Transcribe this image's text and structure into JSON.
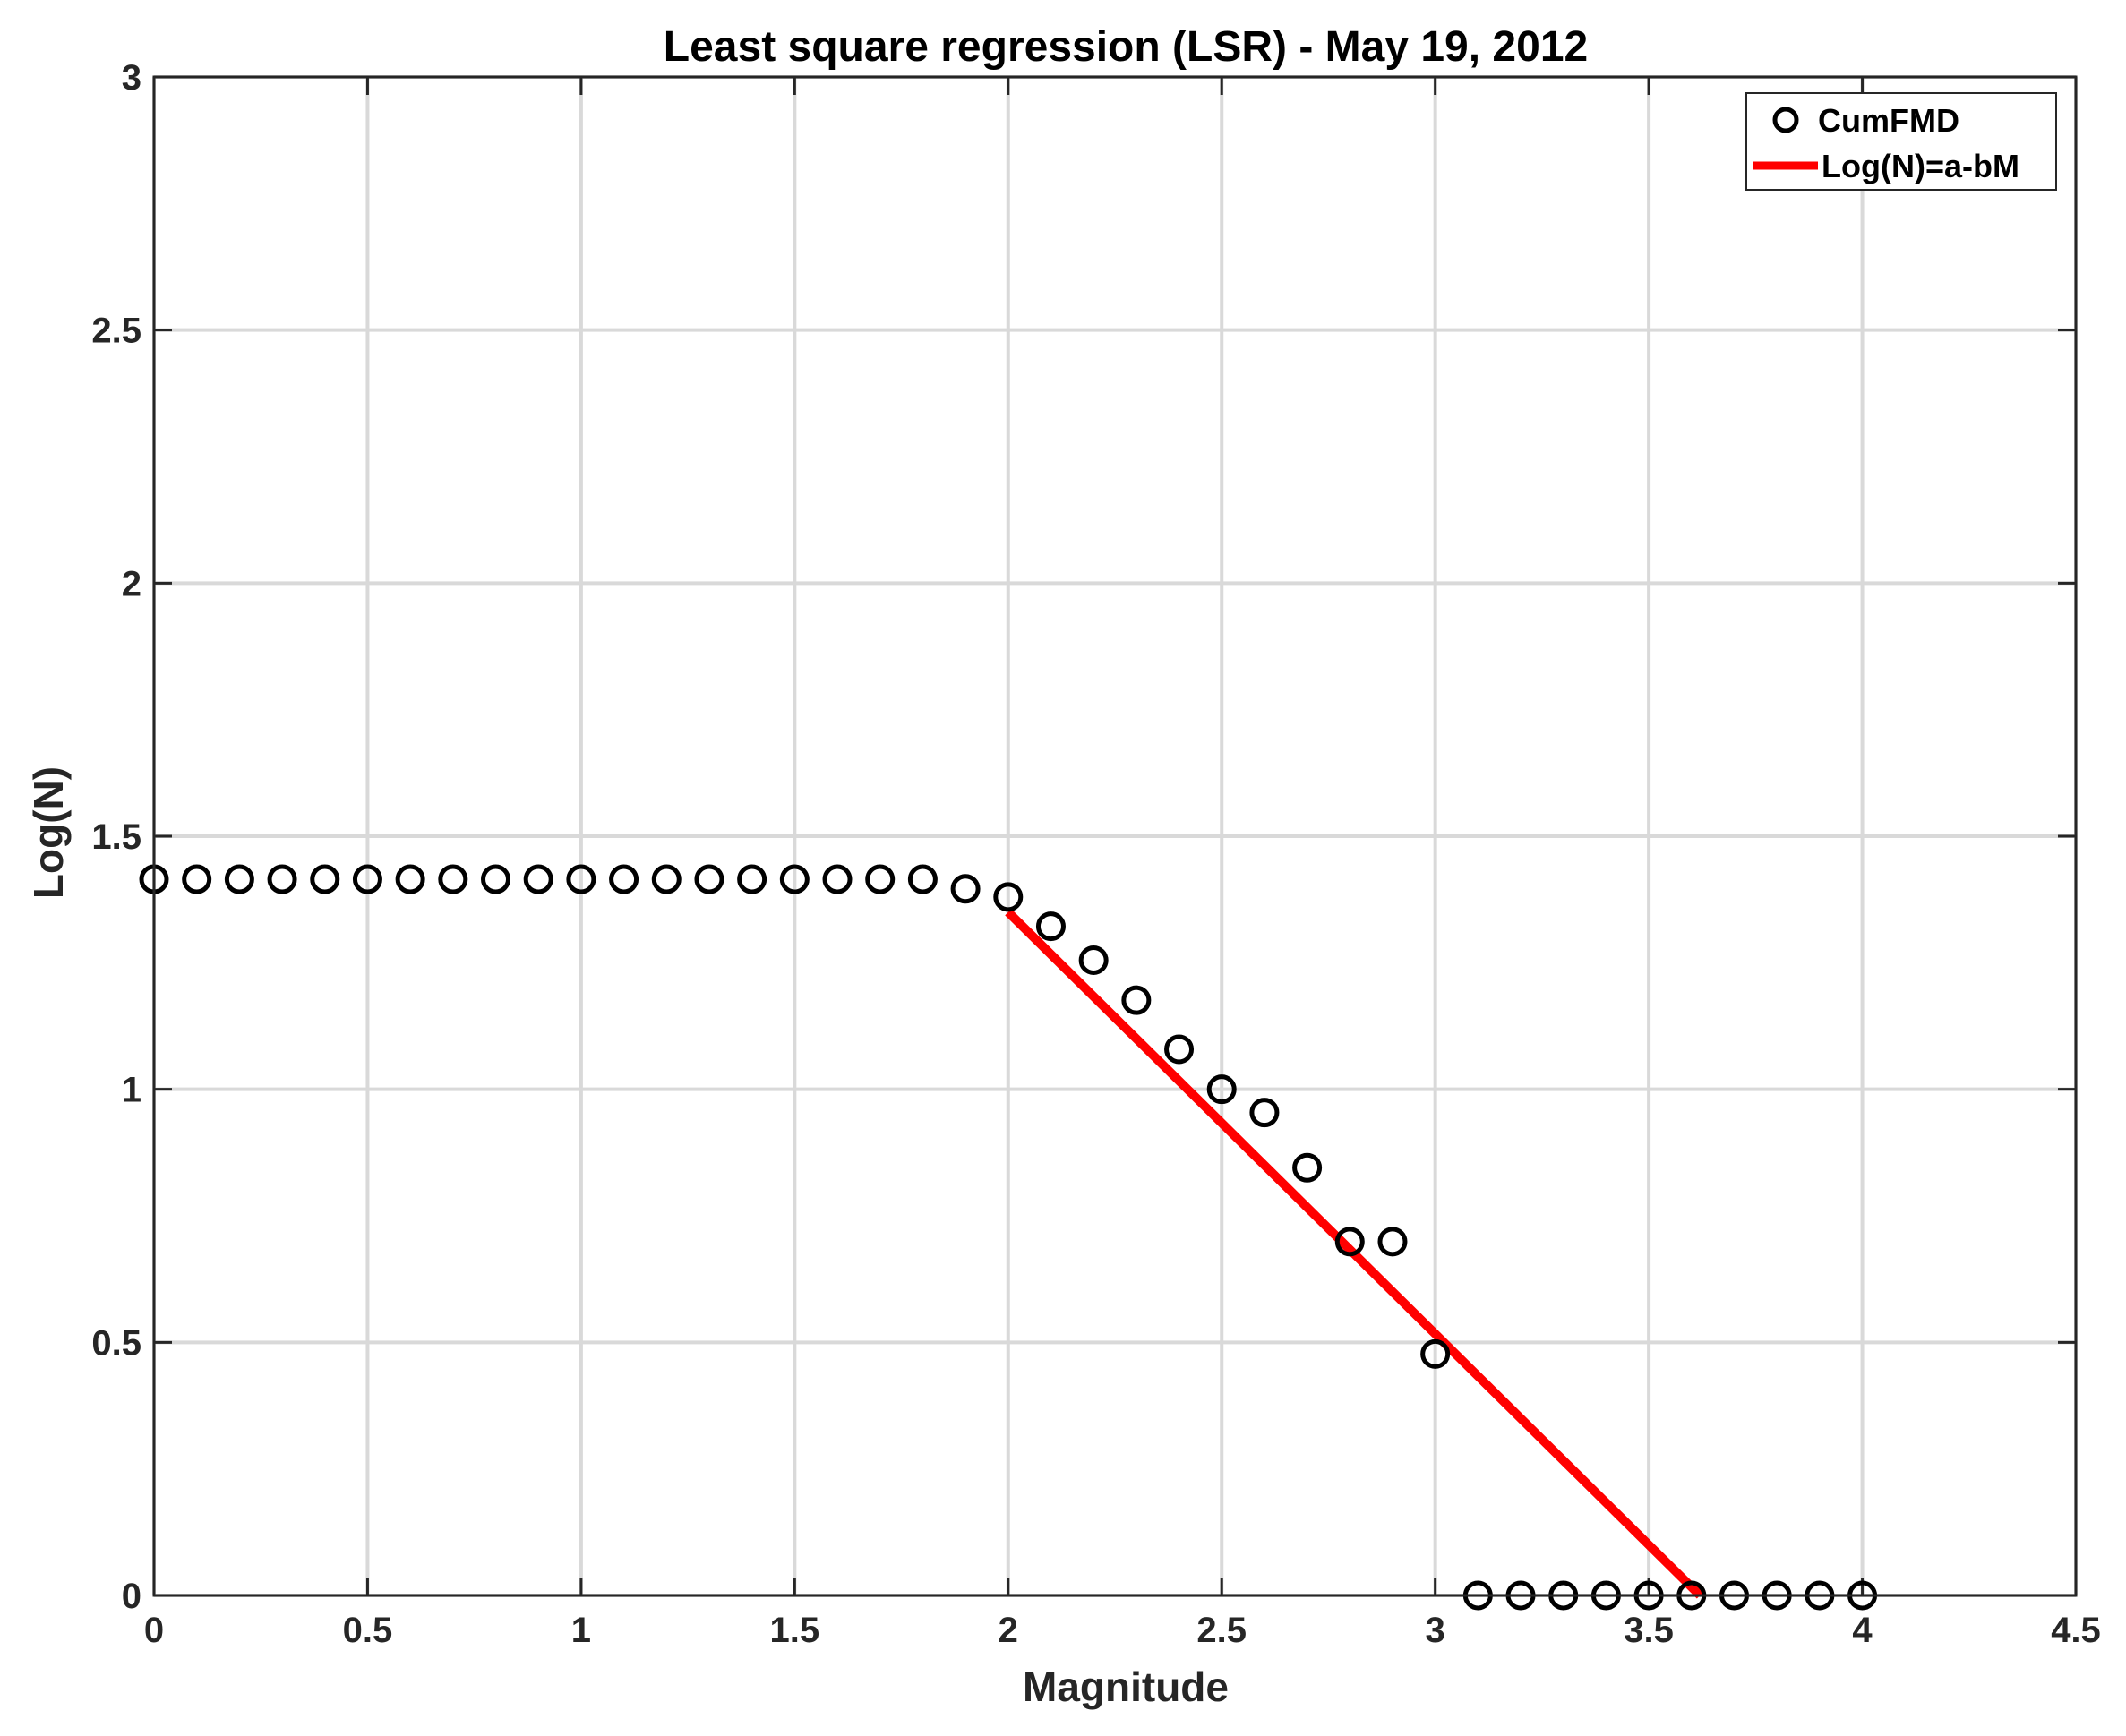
{
  "chart_data": {
    "type": "scatter",
    "title": "Least square regression (LSR) - May 19, 2012",
    "xlabel": "Magnitude",
    "ylabel": "Log(N)",
    "xlim": [
      0,
      4.5
    ],
    "ylim": [
      0,
      3
    ],
    "x_ticks": [
      0,
      0.5,
      1,
      1.5,
      2,
      2.5,
      3,
      3.5,
      4,
      4.5
    ],
    "x_tick_labels": [
      "0",
      "0.5",
      "1",
      "1.5",
      "2",
      "2.5",
      "3",
      "3.5",
      "4",
      "4.5"
    ],
    "y_ticks": [
      0,
      0.5,
      1,
      1.5,
      2,
      2.5,
      3
    ],
    "y_tick_labels": [
      "0",
      "0.5",
      "1",
      "1.5",
      "2",
      "2.5",
      "3"
    ],
    "grid": true,
    "legend_position": "top-right",
    "series": [
      {
        "name": "CumFMD",
        "marker": "circle",
        "color": "#000000",
        "x": [
          0,
          0.1,
          0.2,
          0.3,
          0.4,
          0.5,
          0.6,
          0.7,
          0.8,
          0.9,
          1.0,
          1.1,
          1.2,
          1.3,
          1.4,
          1.5,
          1.6,
          1.7,
          1.8,
          1.9,
          2.0,
          2.1,
          2.2,
          2.3,
          2.4,
          2.5,
          2.6,
          2.7,
          2.8,
          2.9,
          3.0,
          3.1,
          3.2,
          3.3,
          3.4,
          3.5,
          3.6,
          3.7,
          3.8,
          3.9,
          4.0
        ],
        "y": [
          1.415,
          1.415,
          1.415,
          1.415,
          1.415,
          1.415,
          1.415,
          1.415,
          1.415,
          1.415,
          1.415,
          1.415,
          1.415,
          1.415,
          1.415,
          1.415,
          1.415,
          1.415,
          1.415,
          1.396,
          1.38,
          1.322,
          1.255,
          1.176,
          1.079,
          1.0,
          0.954,
          0.845,
          0.699,
          0.699,
          0.477,
          0,
          0,
          0,
          0,
          0,
          0,
          0,
          0,
          0,
          0
        ]
      },
      {
        "name": "Log(N)=a-bM",
        "type": "line",
        "color": "#ff0000",
        "x": [
          2.0,
          3.62
        ],
        "y": [
          1.35,
          0.0
        ]
      }
    ]
  }
}
